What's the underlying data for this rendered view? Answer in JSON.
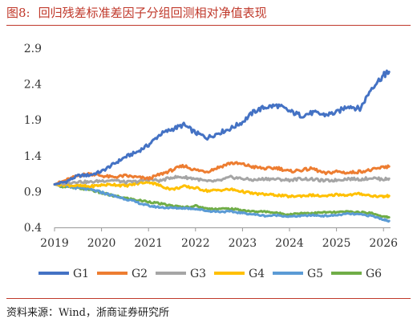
{
  "header": {
    "figure_label": "图8:",
    "title": "回归残差标准差因子分组回测相对净值表现"
  },
  "footer": {
    "source": "资料来源：Wind，浙商证券研究所"
  },
  "colors": {
    "G1": "#4472C4",
    "G2": "#ED7D31",
    "G3": "#A5A5A5",
    "G4": "#FFC000",
    "G5": "#5B9BD5",
    "G6": "#70AD47",
    "title": "#c0392b"
  },
  "chart_data": {
    "type": "line",
    "title": "回归残差标准差因子分组回测相对净值表现",
    "xlabel": "",
    "ylabel": "",
    "xlim": [
      2019.0,
      2026.15
    ],
    "ylim": [
      0.4,
      2.9
    ],
    "x_ticks": [
      "2019",
      "2020",
      "2021",
      "2022",
      "2023",
      "2024",
      "2025",
      "2026"
    ],
    "y_ticks": [
      "2.9",
      "2.4",
      "1.9",
      "1.4",
      "0.9",
      "0.4"
    ],
    "y_tick_values": [
      2.9,
      2.4,
      1.9,
      1.4,
      0.9,
      0.4
    ],
    "legend_position": "bottom",
    "grid": false,
    "series": [
      {
        "name": "G1",
        "x": [
          2019.0,
          2019.25,
          2019.5,
          2019.75,
          2020.0,
          2020.25,
          2020.5,
          2020.75,
          2021.0,
          2021.25,
          2021.5,
          2021.75,
          2022.0,
          2022.25,
          2022.5,
          2022.75,
          2023.0,
          2023.25,
          2023.5,
          2023.75,
          2024.0,
          2024.25,
          2024.5,
          2024.75,
          2025.0,
          2025.25,
          2025.5,
          2025.75,
          2026.0,
          2026.12
        ],
        "values": [
          1.0,
          1.04,
          1.12,
          1.13,
          1.18,
          1.28,
          1.38,
          1.45,
          1.55,
          1.7,
          1.77,
          1.83,
          1.72,
          1.65,
          1.72,
          1.78,
          1.87,
          2.02,
          2.08,
          2.1,
          2.02,
          1.96,
          2.0,
          1.97,
          2.0,
          2.1,
          2.05,
          2.35,
          2.52,
          2.57
        ]
      },
      {
        "name": "G2",
        "x": [
          2019.0,
          2019.25,
          2019.5,
          2019.75,
          2020.0,
          2020.25,
          2020.5,
          2020.75,
          2021.0,
          2021.25,
          2021.5,
          2021.75,
          2022.0,
          2022.25,
          2022.5,
          2022.75,
          2023.0,
          2023.25,
          2023.5,
          2023.75,
          2024.0,
          2024.25,
          2024.5,
          2024.75,
          2025.0,
          2025.25,
          2025.5,
          2025.75,
          2026.0,
          2026.12
        ],
        "values": [
          1.0,
          1.06,
          1.12,
          1.15,
          1.12,
          1.1,
          1.12,
          1.1,
          1.08,
          1.14,
          1.2,
          1.26,
          1.2,
          1.18,
          1.24,
          1.3,
          1.28,
          1.24,
          1.22,
          1.23,
          1.18,
          1.2,
          1.22,
          1.15,
          1.18,
          1.16,
          1.18,
          1.2,
          1.24,
          1.25
        ]
      },
      {
        "name": "G3",
        "x": [
          2019.0,
          2019.25,
          2019.5,
          2019.75,
          2020.0,
          2020.25,
          2020.5,
          2020.75,
          2021.0,
          2021.25,
          2021.5,
          2021.75,
          2022.0,
          2022.25,
          2022.5,
          2022.75,
          2023.0,
          2023.25,
          2023.5,
          2023.75,
          2024.0,
          2024.25,
          2024.5,
          2024.75,
          2025.0,
          2025.25,
          2025.5,
          2025.75,
          2026.0,
          2026.12
        ],
        "values": [
          1.0,
          1.02,
          1.04,
          1.03,
          1.05,
          1.06,
          1.03,
          1.04,
          1.07,
          1.05,
          1.1,
          1.1,
          1.08,
          1.04,
          1.05,
          1.1,
          1.08,
          1.06,
          1.08,
          1.07,
          1.06,
          1.08,
          1.07,
          1.05,
          1.06,
          1.08,
          1.07,
          1.09,
          1.07,
          1.08
        ]
      },
      {
        "name": "G4",
        "x": [
          2019.0,
          2019.25,
          2019.5,
          2019.75,
          2020.0,
          2020.25,
          2020.5,
          2020.75,
          2021.0,
          2021.25,
          2021.5,
          2021.75,
          2022.0,
          2022.25,
          2022.5,
          2022.75,
          2023.0,
          2023.25,
          2023.5,
          2023.75,
          2024.0,
          2024.25,
          2024.5,
          2024.75,
          2025.0,
          2025.25,
          2025.5,
          2025.75,
          2026.0,
          2026.12
        ],
        "values": [
          1.0,
          0.99,
          0.98,
          0.97,
          0.99,
          1.0,
          0.98,
          1.01,
          1.04,
          0.98,
          0.93,
          0.97,
          0.95,
          0.91,
          0.92,
          0.93,
          0.9,
          0.87,
          0.86,
          0.85,
          0.83,
          0.84,
          0.85,
          0.83,
          0.86,
          0.85,
          0.87,
          0.84,
          0.83,
          0.84
        ]
      },
      {
        "name": "G5",
        "x": [
          2019.0,
          2019.25,
          2019.5,
          2019.75,
          2020.0,
          2020.25,
          2020.5,
          2020.75,
          2021.0,
          2021.25,
          2021.5,
          2021.75,
          2022.0,
          2022.25,
          2022.5,
          2022.75,
          2023.0,
          2023.25,
          2023.5,
          2023.75,
          2024.0,
          2024.25,
          2024.5,
          2024.75,
          2025.0,
          2025.25,
          2025.5,
          2025.75,
          2026.0,
          2026.12
        ],
        "values": [
          1.0,
          0.97,
          0.95,
          0.93,
          0.89,
          0.84,
          0.8,
          0.75,
          0.7,
          0.68,
          0.67,
          0.67,
          0.66,
          0.63,
          0.62,
          0.62,
          0.6,
          0.58,
          0.56,
          0.57,
          0.55,
          0.56,
          0.57,
          0.56,
          0.57,
          0.59,
          0.58,
          0.56,
          0.51,
          0.49
        ]
      },
      {
        "name": "G6",
        "x": [
          2019.0,
          2019.25,
          2019.5,
          2019.75,
          2020.0,
          2020.25,
          2020.5,
          2020.75,
          2021.0,
          2021.25,
          2021.5,
          2021.75,
          2022.0,
          2022.25,
          2022.5,
          2022.75,
          2023.0,
          2023.25,
          2023.5,
          2023.75,
          2024.0,
          2024.25,
          2024.5,
          2024.75,
          2025.0,
          2025.25,
          2025.5,
          2025.75,
          2026.0,
          2026.12
        ],
        "values": [
          1.0,
          0.96,
          0.95,
          0.93,
          0.88,
          0.84,
          0.81,
          0.78,
          0.76,
          0.73,
          0.7,
          0.68,
          0.7,
          0.66,
          0.66,
          0.66,
          0.64,
          0.62,
          0.62,
          0.6,
          0.58,
          0.6,
          0.6,
          0.61,
          0.61,
          0.62,
          0.61,
          0.6,
          0.55,
          0.54
        ]
      }
    ]
  }
}
